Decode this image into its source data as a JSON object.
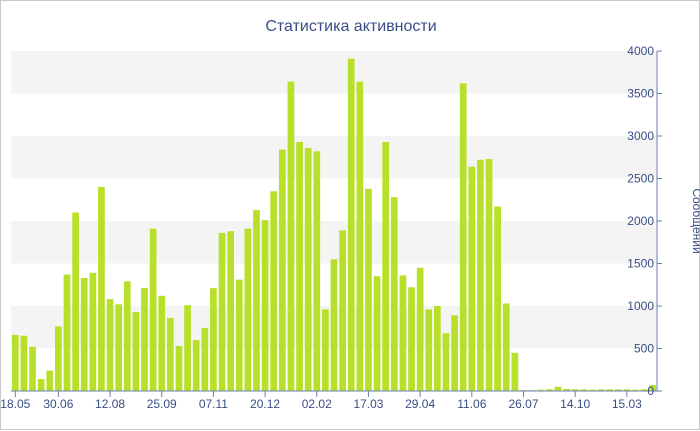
{
  "chart_data": {
    "type": "bar",
    "title": "Статистика активности",
    "ylabel": "Сообщений",
    "ylim": [
      0,
      4000
    ],
    "y_ticks": [
      "0",
      "500",
      "1000",
      "1500",
      "2000",
      "2500",
      "3000",
      "3500",
      "4000"
    ],
    "y_axis_position": "right",
    "x_tick_labels": [
      {
        "index": 0,
        "label": "18.05"
      },
      {
        "index": 5,
        "label": "30.06"
      },
      {
        "index": 11,
        "label": "12.08"
      },
      {
        "index": 17,
        "label": "25.09"
      },
      {
        "index": 23,
        "label": "07.11"
      },
      {
        "index": 29,
        "label": "20.12"
      },
      {
        "index": 35,
        "label": "02.02"
      },
      {
        "index": 41,
        "label": "17.03"
      },
      {
        "index": 47,
        "label": "29.04"
      },
      {
        "index": 53,
        "label": "11.06"
      },
      {
        "index": 59,
        "label": "26.07"
      },
      {
        "index": 65,
        "label": "14.10"
      },
      {
        "index": 71,
        "label": "15.03"
      }
    ],
    "bar_color": "#b8e02a",
    "grid_band_color": "#f4f4f4",
    "values": [
      660,
      650,
      520,
      140,
      240,
      760,
      1370,
      2100,
      1330,
      1390,
      2400,
      1080,
      1020,
      1290,
      930,
      1210,
      1910,
      1120,
      860,
      530,
      1010,
      600,
      740,
      1210,
      1860,
      1880,
      1310,
      1910,
      2130,
      2010,
      2350,
      2840,
      3640,
      2930,
      2860,
      2820,
      960,
      1550,
      1890,
      3910,
      3640,
      2380,
      1350,
      2930,
      2280,
      1360,
      1220,
      1450,
      960,
      1000,
      680,
      890,
      3620,
      2640,
      2720,
      2730,
      2170,
      1030,
      450,
      10,
      10,
      15,
      20,
      50,
      25,
      20,
      20,
      15,
      20,
      20,
      20,
      20,
      15,
      20,
      70
    ]
  }
}
